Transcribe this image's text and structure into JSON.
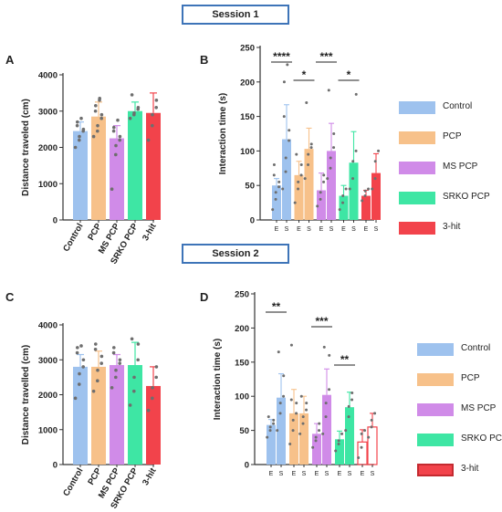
{
  "sessions": [
    "Session 1",
    "Session 2"
  ],
  "panel_letters": [
    "A",
    "B",
    "C",
    "D"
  ],
  "colors": {
    "Control": "#9ec2ee",
    "PCP": "#f7c18a",
    "MS PCP": "#d08be8",
    "SRKO PCP": "#3ee6a4",
    "3-hit": "#f2434b",
    "error_bar": "#555555",
    "points": "#6e6e6e",
    "box": "#3e74b8"
  },
  "legend": {
    "session1": [
      "Control",
      "PCP",
      "MS PCP",
      "SRKO PCP",
      "3-hit"
    ],
    "session2": [
      "Control",
      "PCP",
      "MS PCP",
      "SRKO PCP",
      "3-hit"
    ]
  },
  "chart_data": [
    {
      "id": "A",
      "type": "bar",
      "ylabel": "Distance traveled (cm)",
      "categories": [
        "Control",
        "PCP",
        "MS PCP",
        "SRKO PCP",
        "3-hit"
      ],
      "values": [
        2450,
        2850,
        2250,
        3000,
        2950
      ],
      "errors": [
        250,
        400,
        350,
        250,
        550
      ],
      "ylim": [
        0,
        4000
      ],
      "yticks": [
        0,
        1000,
        2000,
        3000,
        4000
      ],
      "points": [
        [
          2000,
          2200,
          2300,
          2450,
          2500,
          2600,
          2700,
          2800
        ],
        [
          2300,
          2450,
          2600,
          2800,
          2900,
          3000,
          3150,
          3300,
          3350
        ],
        [
          850,
          1800,
          2050,
          2200,
          2300,
          2450,
          2550,
          2750
        ],
        [
          2800,
          2900,
          2950,
          3050,
          3100,
          3450
        ],
        [
          2200,
          2600,
          2900,
          3100,
          3300
        ]
      ]
    },
    {
      "id": "B",
      "type": "bar",
      "ylabel": "Interaction time (s)",
      "groups": [
        "Control",
        "PCP",
        "MS PCP",
        "SRKO PCP",
        "3-hit"
      ],
      "categories": [
        "E",
        "S"
      ],
      "values": [
        [
          50,
          117
        ],
        [
          65,
          103
        ],
        [
          43,
          100
        ],
        [
          35,
          83
        ],
        [
          35,
          68
        ]
      ],
      "errors": [
        [
          10,
          50
        ],
        [
          20,
          30
        ],
        [
          25,
          40
        ],
        [
          15,
          45
        ],
        [
          8,
          28
        ]
      ],
      "ylim": [
        0,
        250
      ],
      "yticks": [
        0,
        50,
        100,
        150,
        200,
        250
      ],
      "points": [
        [
          [
            15,
            30,
            40,
            48,
            55,
            65,
            80
          ],
          [
            45,
            70,
            90,
            115,
            130,
            150,
            200,
            225
          ]
        ],
        [
          [
            25,
            45,
            55,
            65,
            80,
            95
          ],
          [
            60,
            80,
            95,
            105,
            110,
            170
          ]
        ],
        [
          [
            20,
            30,
            40,
            55,
            65
          ],
          [
            60,
            75,
            90,
            105,
            125,
            188
          ]
        ],
        [
          [
            15,
            25,
            35,
            45
          ],
          [
            45,
            60,
            85,
            100,
            182
          ]
        ],
        [
          [
            28,
            35,
            42,
            45
          ],
          [
            45,
            60,
            85,
            100
          ]
        ]
      ],
      "annotations": [
        {
          "label": "****",
          "group": 0
        },
        {
          "label": "*",
          "group": 1
        },
        {
          "label": "***",
          "group": 2
        },
        {
          "label": "*",
          "group": 3
        }
      ]
    },
    {
      "id": "C",
      "type": "bar",
      "ylabel": "Distance travelled (cm)",
      "categories": [
        "Control",
        "PCP",
        "MS PCP",
        "SRKO PCP",
        "3-hit"
      ],
      "values": [
        2800,
        2800,
        2850,
        2850,
        2250
      ],
      "errors": [
        350,
        450,
        300,
        650,
        550
      ],
      "ylim": [
        0,
        4000
      ],
      "yticks": [
        0,
        1000,
        2000,
        3000,
        4000
      ],
      "points": [
        [
          1900,
          2300,
          2600,
          2800,
          3000,
          3200,
          3350,
          3400
        ],
        [
          2100,
          2400,
          2700,
          2900,
          3100,
          3300,
          3450
        ],
        [
          2200,
          2500,
          2700,
          2900,
          3000,
          3200,
          3350
        ],
        [
          1700,
          2100,
          2500,
          3000,
          3450,
          3600
        ],
        [
          1550,
          1900,
          2200,
          2500,
          2800
        ]
      ]
    },
    {
      "id": "D",
      "type": "bar",
      "ylabel": "Interaction time (s)",
      "groups": [
        "Control",
        "PCP",
        "MS PCP",
        "SRKO PCP",
        "3-hit"
      ],
      "categories": [
        "E",
        "S"
      ],
      "values": [
        [
          58,
          98
        ],
        [
          75,
          75
        ],
        [
          45,
          102
        ],
        [
          37,
          84
        ],
        [
          33,
          55
        ]
      ],
      "errors": [
        [
          8,
          35
        ],
        [
          35,
          25
        ],
        [
          15,
          38
        ],
        [
          12,
          22
        ],
        [
          18,
          20
        ]
      ],
      "ylim": [
        0,
        250
      ],
      "yticks": [
        0,
        50,
        100,
        150,
        200,
        250
      ],
      "points": [
        [
          [
            40,
            50,
            55,
            60,
            65,
            70
          ],
          [
            50,
            75,
            90,
            100,
            130,
            165
          ]
        ],
        [
          [
            30,
            50,
            65,
            75,
            90,
            95,
            175
          ],
          [
            45,
            60,
            70,
            80,
            90,
            100
          ]
        ],
        [
          [
            25,
            35,
            40,
            50,
            60
          ],
          [
            45,
            70,
            90,
            110,
            160,
            172
          ]
        ],
        [
          [
            20,
            30,
            35,
            45
          ],
          [
            50,
            70,
            85,
            95,
            105
          ]
        ],
        [
          [
            10,
            25,
            45,
            50
          ],
          [
            40,
            55,
            65,
            75
          ]
        ]
      ],
      "annotations": [
        {
          "label": "**",
          "group": 0
        },
        {
          "label": "***",
          "group": 2
        },
        {
          "label": "**",
          "group": 3
        }
      ]
    }
  ]
}
